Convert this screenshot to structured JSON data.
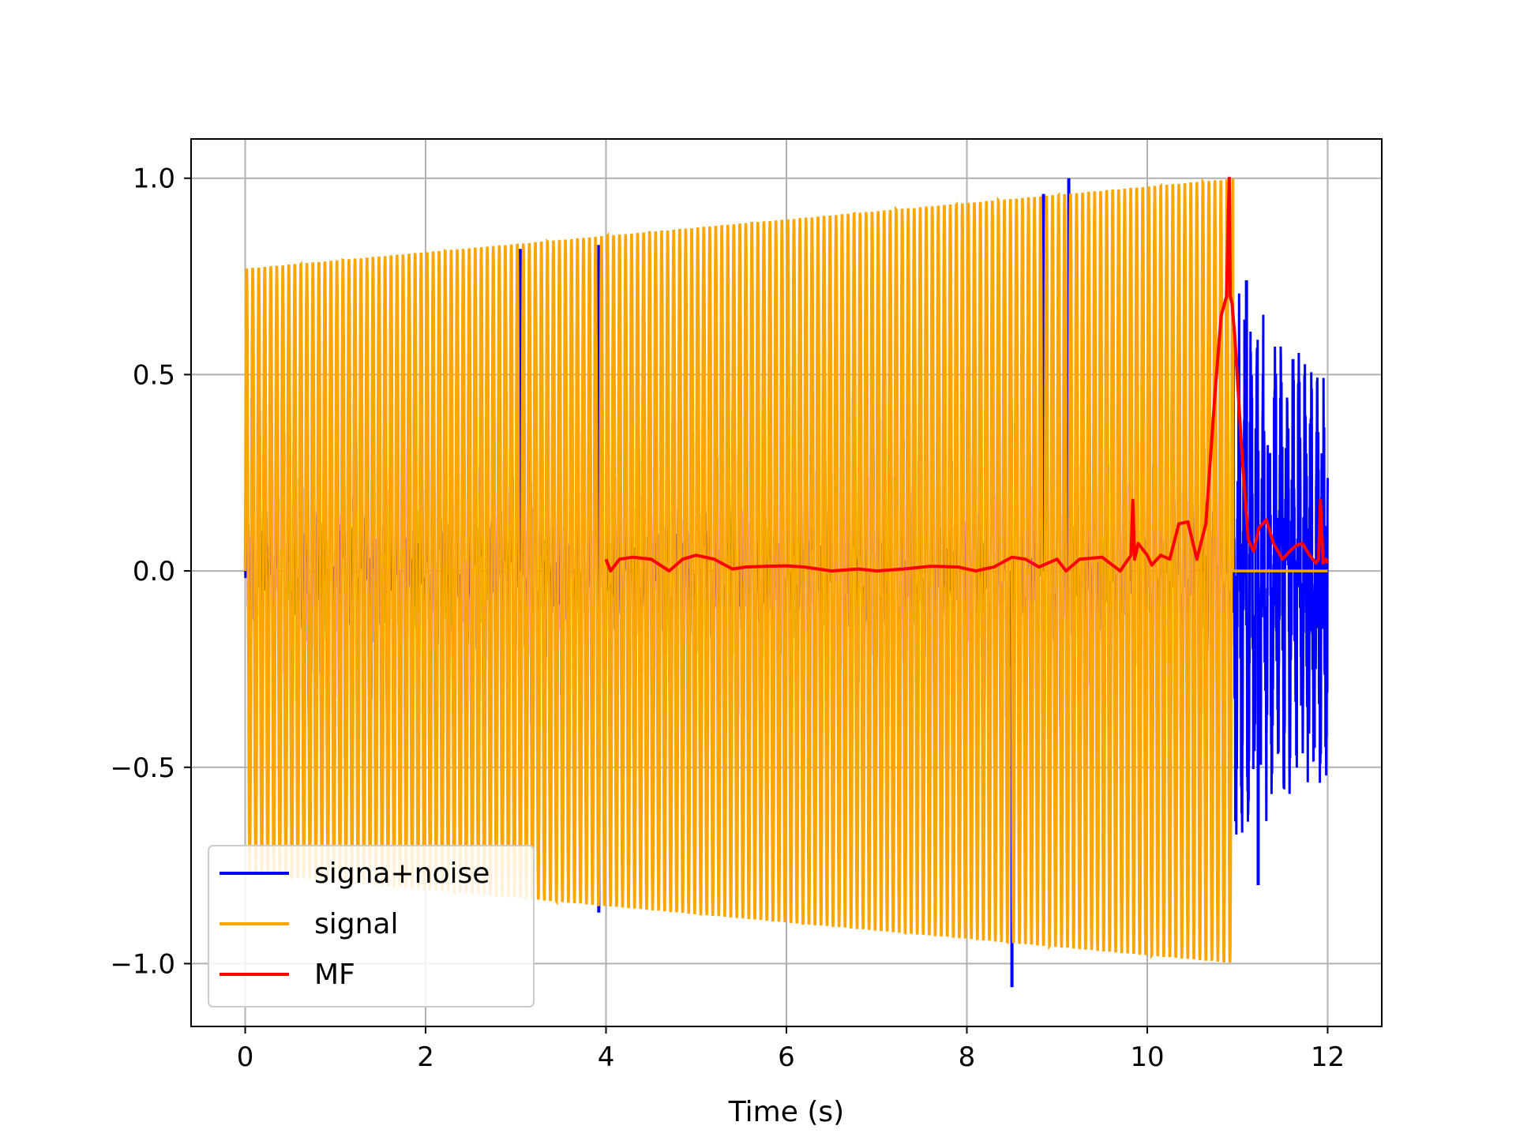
{
  "chart_data": {
    "type": "line",
    "title": "",
    "xlabel": "Time (s)",
    "ylabel": "",
    "xlim": [
      -0.6,
      12.6
    ],
    "ylim": [
      -1.16,
      1.1
    ],
    "xticks": [
      0,
      2,
      4,
      6,
      8,
      10,
      12
    ],
    "yticks": [
      1.0,
      0.5,
      0.0,
      -0.5,
      -1.0
    ],
    "xtick_labels": [
      "0",
      "2",
      "4",
      "6",
      "8",
      "10",
      "12"
    ],
    "ytick_labels": [
      "1.0",
      "0.5",
      "0.0",
      "−0.5",
      "−1.0"
    ],
    "grid": true,
    "legend_position": "lower-left",
    "series": [
      {
        "name": "signa+noise",
        "color": "#0000ff",
        "description_points": {
          "t_start": 0,
          "t_end": 12,
          "noise_tail_start": 10.95,
          "notable_peaks": [
            [
              3.05,
              0.82
            ],
            [
              3.92,
              0.83
            ],
            [
              8.85,
              0.96
            ],
            [
              9.13,
              1.0
            ],
            [
              8.5,
              -1.06
            ],
            [
              3.92,
              -0.87
            ],
            [
              11.1,
              0.74
            ],
            [
              11.23,
              -0.8
            ]
          ]
        }
      },
      {
        "name": "signal",
        "color": "#ffa500",
        "envelope": {
          "t": [
            0,
            11
          ],
          "amplitude": [
            0.77,
            1.0
          ]
        },
        "cycles_per_second": 15,
        "end_time": 10.95,
        "flat_after": [
          10.95,
          12,
          0.0
        ]
      },
      {
        "name": "MF",
        "color": "#ff0000",
        "x": [
          4.0,
          4.05,
          4.15,
          4.3,
          4.5,
          4.7,
          4.85,
          5.0,
          5.2,
          5.4,
          5.55,
          5.8,
          6.0,
          6.2,
          6.5,
          6.8,
          7.0,
          7.3,
          7.6,
          7.9,
          8.1,
          8.3,
          8.5,
          8.65,
          8.8,
          9.0,
          9.1,
          9.25,
          9.5,
          9.7,
          9.82,
          9.84,
          9.86,
          9.9,
          10.0,
          10.05,
          10.15,
          10.25,
          10.35,
          10.45,
          10.55,
          10.65,
          10.75,
          10.82,
          10.88,
          10.9,
          10.91,
          10.92,
          10.94,
          10.97,
          11.05,
          11.12,
          11.18,
          11.24,
          11.32,
          11.4,
          11.5,
          11.58,
          11.65,
          11.72,
          11.8,
          11.87,
          11.9,
          11.92,
          11.95,
          11.98,
          12.0
        ],
        "y": [
          0.03,
          0.0,
          0.03,
          0.035,
          0.03,
          0.0,
          0.03,
          0.04,
          0.03,
          0.005,
          0.01,
          0.012,
          0.013,
          0.01,
          0.0,
          0.005,
          0.0,
          0.005,
          0.012,
          0.01,
          0.0,
          0.01,
          0.035,
          0.03,
          0.01,
          0.03,
          0.0,
          0.03,
          0.035,
          0.0,
          0.04,
          0.18,
          0.03,
          0.07,
          0.04,
          0.015,
          0.04,
          0.03,
          0.12,
          0.125,
          0.03,
          0.12,
          0.45,
          0.65,
          0.7,
          0.92,
          1.0,
          0.7,
          0.68,
          0.6,
          0.3,
          0.08,
          0.05,
          0.11,
          0.13,
          0.07,
          0.03,
          0.05,
          0.065,
          0.07,
          0.04,
          0.02,
          0.03,
          0.18,
          0.02,
          0.03,
          0.02
        ]
      }
    ]
  }
}
